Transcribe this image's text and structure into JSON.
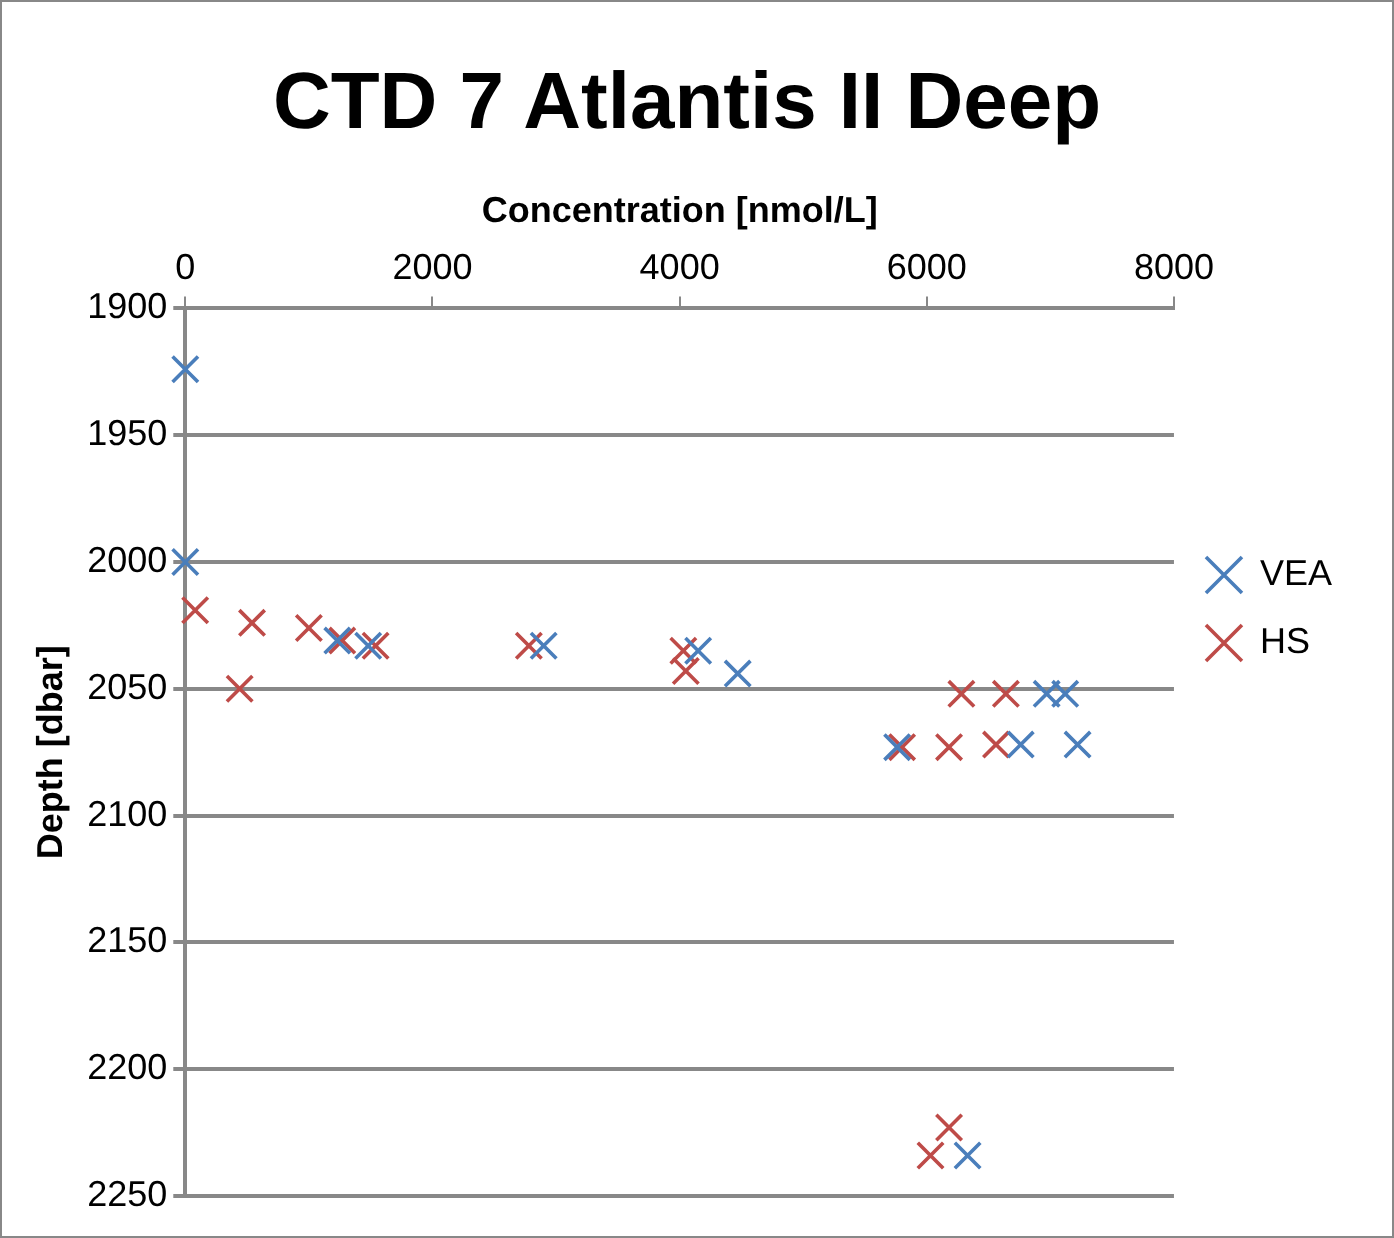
{
  "chart_data": {
    "type": "scatter",
    "title": "CTD 7 Atlantis II Deep",
    "xlabel": "Concentration [nmol/L]",
    "ylabel": "Depth [dbar]",
    "xlim": [
      0,
      8000
    ],
    "xticks": [
      0,
      2000,
      4000,
      6000,
      8000
    ],
    "ylim": [
      2250,
      1900
    ],
    "yticks": [
      1900,
      1950,
      2000,
      2050,
      2100,
      2150,
      2200,
      2250
    ],
    "grid": "y",
    "legend": "right",
    "marker": "cross",
    "series": [
      {
        "name": "VEA",
        "color": "#4a7ebb",
        "x": [
          0,
          0,
          1230,
          1480,
          2900,
          4150,
          4470,
          5760,
          6760,
          6970,
          7120,
          7220,
          6330
        ],
        "values": [
          1924,
          2000,
          2031,
          2033,
          2033,
          2035,
          2044,
          2073,
          2072,
          2052,
          2052,
          2072,
          2234
        ]
      },
      {
        "name": "HS",
        "color": "#be4b48",
        "x": [
          80,
          540,
          440,
          1000,
          1270,
          1540,
          2780,
          4030,
          4050,
          6280,
          6640,
          5800,
          6180,
          6560,
          6180,
          6030
        ],
        "values": [
          2019,
          2024,
          2050,
          2026,
          2031,
          2033,
          2033,
          2035,
          2043,
          2052,
          2052,
          2073,
          2073,
          2072,
          2223,
          2234
        ]
      }
    ]
  }
}
